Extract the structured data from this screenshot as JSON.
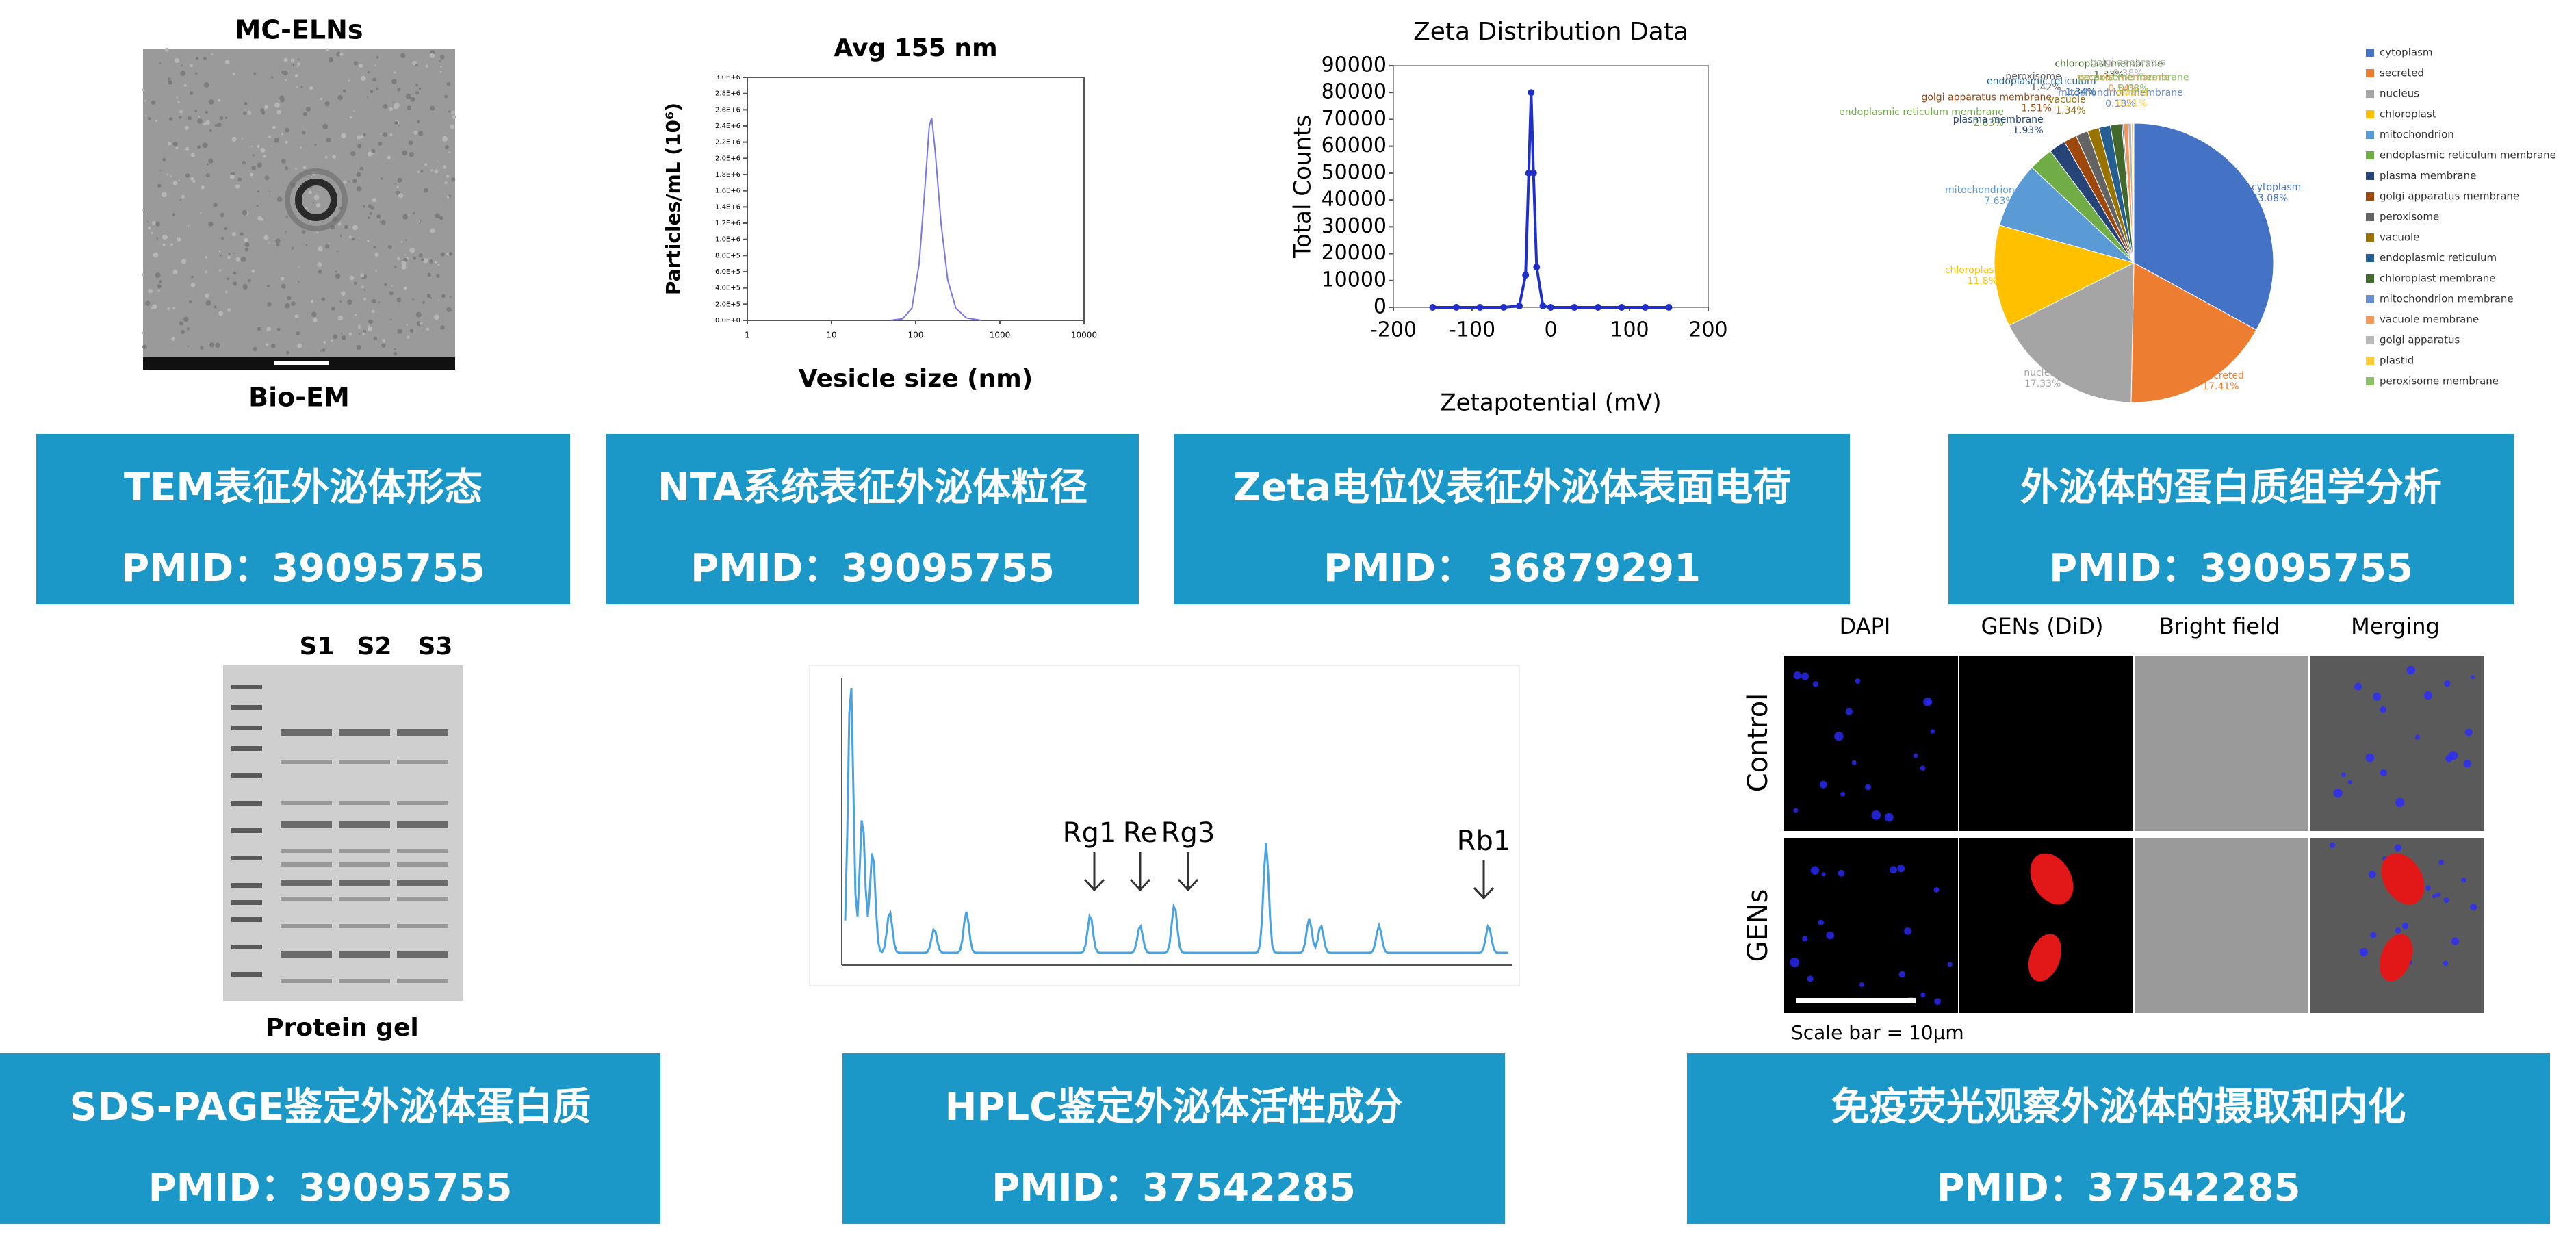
{
  "panels": [
    {
      "caption": "TEM表征外泌体形态",
      "pmid": "PMID：39095755"
    },
    {
      "caption": "NTA系统表征外泌体粒径",
      "pmid": "PMID：39095755"
    },
    {
      "caption": "Zeta电位仪表征外泌体表面电荷",
      "pmid": "PMID： 36879291"
    },
    {
      "caption": "外泌体的蛋白质组学分析",
      "pmid": "PMID：39095755"
    },
    {
      "caption": "SDS-PAGE鉴定外泌体蛋白质",
      "pmid": "PMID：39095755"
    },
    {
      "caption": "HPLC鉴定外泌体活性成分",
      "pmid": "PMID：37542285"
    },
    {
      "caption": "免疫荧光观察外泌体的摄取和内化",
      "pmid": "PMID：37542285"
    }
  ],
  "figures": {
    "tem": {
      "title": "MC-ELNs",
      "label": "Bio-EM"
    },
    "gel": {
      "lanes": [
        "S1",
        "S2",
        "S3"
      ],
      "label": "Protein gel"
    },
    "hplc": {
      "peaks": [
        "Rg1",
        "Re",
        "Rg3",
        "Rb1"
      ]
    },
    "fluorescence": {
      "columns": [
        "DAPI",
        "GENs (DiD)",
        "Bright field",
        "Merging"
      ],
      "rows": [
        "Control",
        "GENs"
      ],
      "scale_bar": "Scale bar = 10μm"
    }
  },
  "chart_data": [
    {
      "type": "line",
      "title": "Avg 155 nm",
      "x_label": "Vesicle size (nm)",
      "y_label": "Particles/mL (10⁶)",
      "x_scale": "log",
      "xlim": [
        1,
        10000
      ],
      "xticks": [
        1,
        10,
        100,
        1000,
        10000
      ],
      "ylim": [
        0,
        3000000
      ],
      "yticks": [
        {
          "value": 0,
          "label": "0.0E+0"
        },
        {
          "value": 200000,
          "label": "2.0E+5"
        },
        {
          "value": 400000,
          "label": "4.0E+5"
        },
        {
          "value": 600000,
          "label": "6.0E+5"
        },
        {
          "value": 800000,
          "label": "8.0E+5"
        },
        {
          "value": 1000000,
          "label": "1.0E+6"
        },
        {
          "value": 1200000,
          "label": "1.2E+6"
        },
        {
          "value": 1400000,
          "label": "1.4E+6"
        },
        {
          "value": 1600000,
          "label": "1.6E+6"
        },
        {
          "value": 1800000,
          "label": "1.8E+6"
        },
        {
          "value": 2000000,
          "label": "2.0E+6"
        },
        {
          "value": 2200000,
          "label": "2.2E+6"
        },
        {
          "value": 2400000,
          "label": "2.4E+6"
        },
        {
          "value": 2600000,
          "label": "2.6E+6"
        },
        {
          "value": 2800000,
          "label": "2.8E+6"
        },
        {
          "value": 3000000,
          "label": "3.0E+6"
        }
      ],
      "x": [
        50,
        70,
        90,
        110,
        130,
        145,
        155,
        170,
        200,
        240,
        300,
        400,
        600
      ],
      "series": [
        {
          "color": "#7a78e0",
          "values": [
            0,
            20000,
            150000,
            700000,
            1700000,
            2400000,
            2500000,
            2100000,
            1200000,
            500000,
            150000,
            30000,
            0
          ]
        }
      ]
    },
    {
      "type": "line",
      "title": "Zeta Distribution Data",
      "x_label": "Zetapotential (mV)",
      "y_label": "Total Counts",
      "xlim": [
        -200,
        200
      ],
      "xticks": [
        -200,
        -100,
        0,
        100,
        200
      ],
      "ylim": [
        0,
        90000
      ],
      "yticks": [
        0,
        10000,
        20000,
        30000,
        40000,
        50000,
        60000,
        70000,
        80000,
        90000
      ],
      "x": [
        -150,
        -120,
        -90,
        -60,
        -40,
        -32,
        -28,
        -25,
        -22,
        -18,
        -10,
        0,
        30,
        60,
        90,
        120,
        150
      ],
      "series": [
        {
          "color": "#1f2fc8",
          "values": [
            0,
            0,
            0,
            0,
            500,
            12000,
            50000,
            80000,
            50000,
            15000,
            500,
            0,
            0,
            0,
            0,
            0,
            0
          ]
        }
      ]
    },
    {
      "type": "pie",
      "categories": [
        "cytoplasm",
        "secreted",
        "nucleus",
        "chloroplast",
        "mitochondrion",
        "endoplasmic reticulum membrane",
        "plasma membrane",
        "golgi apparatus membrane",
        "peroxisome",
        "vacuole",
        "endoplasmic reticulum",
        "chloroplast membrane",
        "mitochondrion membrane",
        "vacuole membrane",
        "golgi apparatus",
        "plastid",
        "peroxisome membrane"
      ],
      "values": [
        33.08,
        17.41,
        17.33,
        11.8,
        7.63,
        2.83,
        1.93,
        1.51,
        1.42,
        1.34,
        1.34,
        1.33,
        0.18,
        0.54,
        0.38,
        0.21,
        0.08
      ],
      "value_labels": [
        "33.08%",
        "17.41%",
        "17.33%",
        "11.8%",
        "7.63%",
        "2.83%",
        "1.93%",
        "1.51%",
        "1.42%",
        "1.34%",
        "1.34%",
        "1.33%",
        "0.18%",
        "0.54%",
        "0.38%",
        "0.21%",
        "0.08%"
      ],
      "colors": [
        "#4472c4",
        "#ed7d31",
        "#a5a5a5",
        "#ffc000",
        "#5b9bd5",
        "#70ad47",
        "#264478",
        "#9e480e",
        "#636363",
        "#997300",
        "#255e91",
        "#43682b",
        "#698ed0",
        "#f1975a",
        "#b7b7b7",
        "#ffcd33",
        "#8cc168"
      ],
      "legend": "right"
    }
  ]
}
